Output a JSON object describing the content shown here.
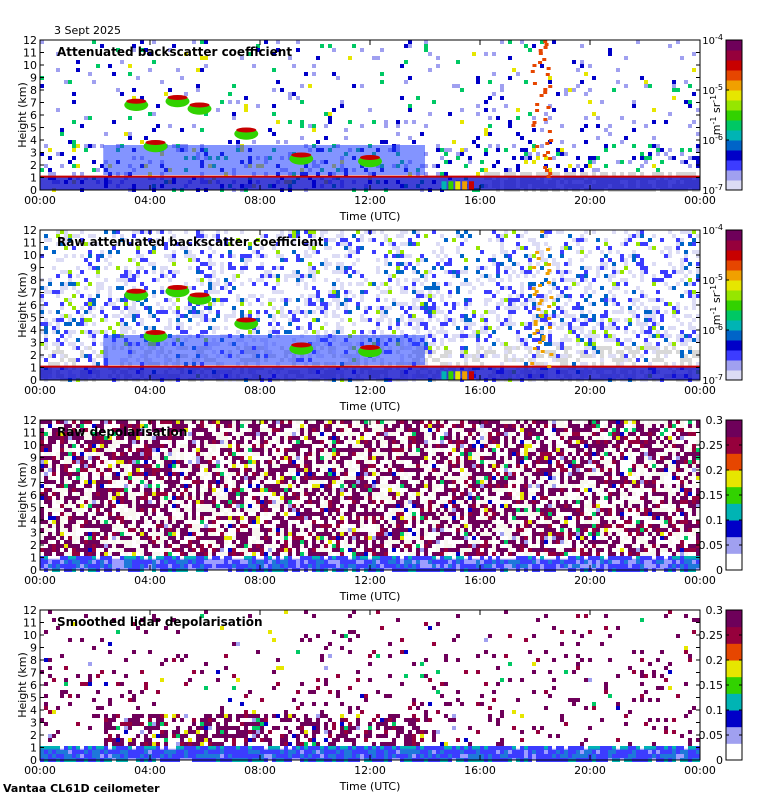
{
  "date_label": "3 Sept 2025",
  "footer_label": "Vantaa CL61D ceilometer",
  "colors": {
    "rainbow": [
      "#ffffff",
      "#dcdcf5",
      "#a0a0f0",
      "#3c3cff",
      "#0000c8",
      "#0064c8",
      "#00b4b4",
      "#00c864",
      "#32d200",
      "#96e600",
      "#e6e600",
      "#f0a000",
      "#e64600",
      "#c80000",
      "#96003c",
      "#6e005a"
    ]
  },
  "chart_data": [
    {
      "type": "heatmap",
      "title": "Attenuated backscatter coefficient",
      "xlabel": "Time (UTC)",
      "ylabel": "Height (km)",
      "xticks": [
        "00:00",
        "04:00",
        "08:00",
        "12:00",
        "16:00",
        "20:00",
        "00:00"
      ],
      "xlim_hours": [
        0,
        24
      ],
      "ylim": [
        0,
        12
      ],
      "yticks": [
        "0",
        "1",
        "2",
        "3",
        "4",
        "5",
        "6",
        "7",
        "8",
        "9",
        "10",
        "11",
        "12"
      ],
      "colorbar": {
        "scale": "log",
        "range": [
          1e-07,
          0.0001
        ],
        "ticks": [
          {
            "base": "10",
            "exp": "-7"
          },
          {
            "base": "10",
            "exp": "-6"
          },
          {
            "base": "10",
            "exp": "-5"
          },
          {
            "base": "10",
            "exp": "-4"
          }
        ],
        "unit": {
          "a": "m",
          "a_exp": "-1",
          "b": "sr",
          "b_exp": "-1"
        }
      },
      "features": {
        "boundary_layer_top_km": 1.0,
        "cloud_layers_km": [
          [
            3.5,
            4.5
          ],
          [
            6.5,
            7.5
          ]
        ],
        "rain_event_hours": [
          17.8,
          18.8
        ]
      }
    },
    {
      "type": "heatmap",
      "title": "Raw attenuated backscatter coefficient",
      "xlabel": "Time (UTC)",
      "ylabel": "Height (km)",
      "xticks": [
        "00:00",
        "04:00",
        "08:00",
        "12:00",
        "16:00",
        "20:00",
        "00:00"
      ],
      "xlim_hours": [
        0,
        24
      ],
      "ylim": [
        0,
        12
      ],
      "yticks": [
        "0",
        "1",
        "2",
        "3",
        "4",
        "5",
        "6",
        "7",
        "8",
        "9",
        "10",
        "11",
        "12"
      ],
      "colorbar": {
        "scale": "log",
        "range": [
          1e-07,
          0.0001
        ],
        "ticks": [
          {
            "base": "10",
            "exp": "-7"
          },
          {
            "base": "10",
            "exp": "-6"
          },
          {
            "base": "10",
            "exp": "-5"
          },
          {
            "base": "10",
            "exp": "-4"
          }
        ],
        "unit": {
          "a": "m",
          "a_exp": "-1",
          "b": "sr",
          "b_exp": "-1"
        }
      },
      "features": {
        "boundary_layer_top_km": 1.0,
        "cloud_layers_km": [
          [
            3.5,
            4.5
          ],
          [
            6.5,
            7.5
          ]
        ],
        "rain_event_hours": [
          17.8,
          18.8
        ]
      }
    },
    {
      "type": "heatmap",
      "title": "Raw depolarisation",
      "xlabel": "Time (UTC)",
      "ylabel": "Height (km)",
      "xticks": [
        "00:00",
        "04:00",
        "08:00",
        "12:00",
        "16:00",
        "20:00",
        "00:00"
      ],
      "xlim_hours": [
        0,
        24
      ],
      "ylim": [
        0,
        12
      ],
      "yticks": [
        "0",
        "1",
        "2",
        "3",
        "4",
        "5",
        "6",
        "7",
        "8",
        "9",
        "10",
        "11",
        "12"
      ],
      "colorbar": {
        "scale": "linear",
        "range": [
          0,
          0.3
        ],
        "ticks": [
          "0",
          "0.05",
          "0.1",
          "0.15",
          "0.2",
          "0.25",
          "0.3"
        ]
      }
    },
    {
      "type": "heatmap",
      "title": "Smoothed lidar depolarisation",
      "xlabel": "Time (UTC)",
      "ylabel": "Height (km)",
      "xticks": [
        "00:00",
        "04:00",
        "08:00",
        "12:00",
        "16:00",
        "20:00",
        "00:00"
      ],
      "xlim_hours": [
        0,
        24
      ],
      "ylim": [
        0,
        12
      ],
      "yticks": [
        "0",
        "1",
        "2",
        "3",
        "4",
        "5",
        "6",
        "7",
        "8",
        "9",
        "10",
        "11",
        "12"
      ],
      "colorbar": {
        "scale": "linear",
        "range": [
          0,
          0.3
        ],
        "ticks": [
          "0",
          "0.05",
          "0.1",
          "0.15",
          "0.2",
          "0.25",
          "0.3"
        ]
      }
    }
  ]
}
